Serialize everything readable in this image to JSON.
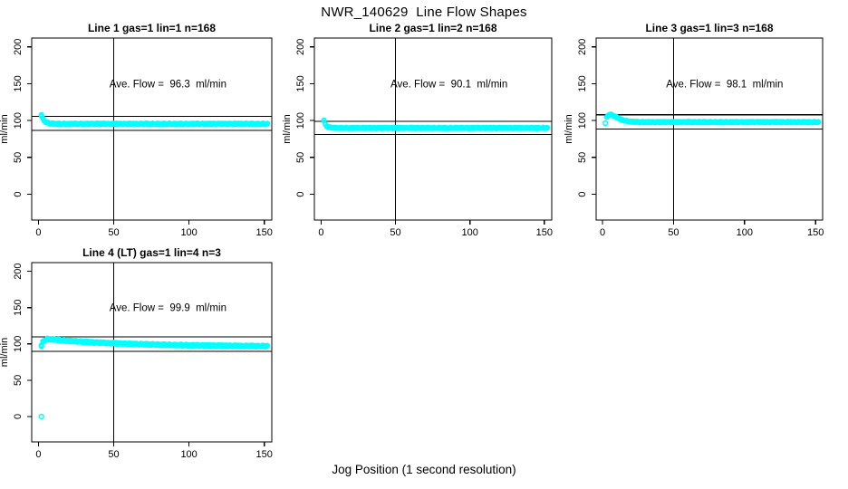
{
  "figure": {
    "title": "NWR_140629  Line Flow Shapes",
    "xlabel": "Jog Position (1 second resolution)"
  },
  "colors": {
    "points": "#00FFFF",
    "axis": "#000000",
    "background": "#FFFFFF"
  },
  "chart_data": [
    {
      "type": "scatter",
      "title": "Line 1 gas=1 lin=1 n=168",
      "annotation": "Ave. Flow =  96.3  ml/min",
      "ave_flow": 96.3,
      "n": 168,
      "ylabel": "ml/min",
      "xticks": [
        0,
        50,
        100,
        150
      ],
      "yticks": [
        0,
        50,
        100,
        150,
        200
      ],
      "xlim": [
        -4.5,
        155
      ],
      "ylim": [
        -35,
        212
      ],
      "vline_x": 50,
      "hlines": [
        105.9,
        86.7
      ],
      "band_halfwidth": 2.2,
      "curve": [
        [
          2,
          107
        ],
        [
          3,
          102.5
        ],
        [
          4,
          99.8
        ],
        [
          5,
          98
        ],
        [
          6,
          97
        ],
        [
          7,
          96.4
        ],
        [
          8,
          96
        ],
        [
          10,
          95.7
        ],
        [
          12,
          95.5
        ],
        [
          16,
          95.4
        ],
        [
          24,
          95.5
        ],
        [
          32,
          95.4
        ],
        [
          40,
          95.5
        ],
        [
          48,
          95.4
        ],
        [
          56,
          95.5
        ],
        [
          64,
          95.4
        ],
        [
          72,
          95.5
        ],
        [
          80,
          95.4
        ],
        [
          88,
          95.5
        ],
        [
          96,
          95.4
        ],
        [
          104,
          95.5
        ],
        [
          112,
          95.4
        ],
        [
          120,
          95.5
        ],
        [
          128,
          95.4
        ],
        [
          136,
          95.5
        ],
        [
          144,
          95.4
        ],
        [
          152,
          95.5
        ]
      ],
      "outliers": []
    },
    {
      "type": "scatter",
      "title": "Line 2 gas=1 lin=2 n=168",
      "annotation": "Ave. Flow =  90.1  ml/min",
      "ave_flow": 90.1,
      "n": 168,
      "ylabel": "ml/min",
      "xticks": [
        0,
        50,
        100,
        150
      ],
      "yticks": [
        0,
        50,
        100,
        150,
        200
      ],
      "xlim": [
        -4.5,
        155
      ],
      "ylim": [
        -35,
        212
      ],
      "vline_x": 50,
      "hlines": [
        99.1,
        81.1
      ],
      "band_halfwidth": 1.8,
      "curve": [
        [
          2,
          100
        ],
        [
          3,
          94.5
        ],
        [
          4,
          92.2
        ],
        [
          5,
          91.2
        ],
        [
          6,
          90.7
        ],
        [
          8,
          90.3
        ],
        [
          10,
          90.1
        ],
        [
          14,
          90
        ],
        [
          20,
          89.9
        ],
        [
          28,
          90
        ],
        [
          36,
          89.9
        ],
        [
          44,
          90
        ],
        [
          52,
          89.9
        ],
        [
          60,
          90
        ],
        [
          68,
          89.9
        ],
        [
          76,
          90
        ],
        [
          84,
          89.9
        ],
        [
          92,
          90
        ],
        [
          100,
          89.9
        ],
        [
          108,
          90
        ],
        [
          116,
          89.9
        ],
        [
          124,
          90
        ],
        [
          132,
          89.9
        ],
        [
          140,
          90
        ],
        [
          146,
          89.9
        ],
        [
          152,
          90
        ]
      ],
      "outliers": []
    },
    {
      "type": "scatter",
      "title": "Line 3 gas=1 lin=3 n=168",
      "annotation": "Ave. Flow =  98.1  ml/min",
      "ave_flow": 98.1,
      "n": 168,
      "ylabel": "ml/min",
      "xticks": [
        0,
        50,
        100,
        150
      ],
      "yticks": [
        0,
        50,
        100,
        150,
        200
      ],
      "xlim": [
        -4.5,
        155
      ],
      "ylim": [
        -35,
        212
      ],
      "vline_x": 50,
      "hlines": [
        107.9,
        88.3
      ],
      "band_halfwidth": 1.8,
      "curve": [
        [
          3,
          104.5
        ],
        [
          4,
          107
        ],
        [
          5,
          108
        ],
        [
          6,
          107.8
        ],
        [
          7,
          107.2
        ],
        [
          8,
          106.3
        ],
        [
          9,
          105.4
        ],
        [
          10,
          104.4
        ],
        [
          11,
          103.4
        ],
        [
          12,
          102.4
        ],
        [
          13,
          101.5
        ],
        [
          14,
          100.7
        ],
        [
          15,
          100.1
        ],
        [
          16,
          99.6
        ],
        [
          18,
          98.9
        ],
        [
          20,
          98.5
        ],
        [
          24,
          98.1
        ],
        [
          28,
          98
        ],
        [
          36,
          97.9
        ],
        [
          44,
          98
        ],
        [
          52,
          97.9
        ],
        [
          60,
          98
        ],
        [
          68,
          97.9
        ],
        [
          76,
          98
        ],
        [
          84,
          97.9
        ],
        [
          92,
          98
        ],
        [
          100,
          97.9
        ],
        [
          108,
          98
        ],
        [
          116,
          97.9
        ],
        [
          124,
          98
        ],
        [
          132,
          97.9
        ],
        [
          140,
          98
        ],
        [
          146,
          97.9
        ],
        [
          152,
          98
        ]
      ],
      "outliers": [
        [
          2,
          96.5
        ]
      ]
    },
    {
      "type": "scatter",
      "title": "Line 4 (LT) gas=1 lin=4 n=3",
      "annotation": "Ave. Flow =  99.9  ml/min",
      "ave_flow": 99.9,
      "n": 3,
      "ylabel": "ml/min",
      "xticks": [
        0,
        50,
        100,
        150
      ],
      "yticks": [
        0,
        50,
        100,
        150,
        200
      ],
      "xlim": [
        -4.5,
        155
      ],
      "ylim": [
        -35,
        212
      ],
      "vline_x": 50,
      "hlines": [
        109.9,
        89.9
      ],
      "band_halfwidth": 2.6,
      "curve": [
        [
          2,
          97.5
        ],
        [
          3,
          103
        ],
        [
          4,
          105
        ],
        [
          5,
          106
        ],
        [
          6,
          106.5
        ],
        [
          8,
          106.4
        ],
        [
          10,
          106.1
        ],
        [
          12,
          105.7
        ],
        [
          15,
          105.1
        ],
        [
          20,
          104.3
        ],
        [
          25,
          103.5
        ],
        [
          30,
          102.9
        ],
        [
          35,
          102.3
        ],
        [
          40,
          101.8
        ],
        [
          45,
          101.3
        ],
        [
          50,
          100.9
        ],
        [
          55,
          100.5
        ],
        [
          60,
          100.1
        ],
        [
          70,
          99.5
        ],
        [
          80,
          99
        ],
        [
          90,
          98.5
        ],
        [
          100,
          98.1
        ],
        [
          110,
          97.8
        ],
        [
          120,
          97.5
        ],
        [
          130,
          97.3
        ],
        [
          140,
          97.1
        ],
        [
          152,
          97
        ]
      ],
      "outliers": [
        [
          2,
          0
        ]
      ]
    }
  ]
}
